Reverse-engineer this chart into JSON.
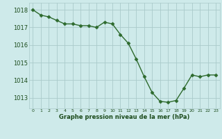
{
  "x": [
    0,
    1,
    2,
    3,
    4,
    5,
    6,
    7,
    8,
    9,
    10,
    11,
    12,
    13,
    14,
    15,
    16,
    17,
    18,
    19,
    20,
    21,
    22,
    23
  ],
  "y": [
    1018.0,
    1017.7,
    1017.6,
    1017.4,
    1017.2,
    1017.2,
    1017.1,
    1017.1,
    1017.0,
    1017.3,
    1017.2,
    1016.6,
    1016.1,
    1015.2,
    1014.2,
    1013.3,
    1012.8,
    1012.75,
    1012.85,
    1013.55,
    1014.3,
    1014.2,
    1014.3,
    1014.3
  ],
  "line_color": "#2d6a2d",
  "marker": "D",
  "marker_size": 2.5,
  "bg_color": "#ceeaea",
  "grid_color": "#aacaca",
  "label_color": "#1a4a1a",
  "xlabel": "Graphe pression niveau de la mer (hPa)",
  "yticks": [
    1013,
    1014,
    1015,
    1016,
    1017,
    1018
  ],
  "xticks": [
    0,
    1,
    2,
    3,
    4,
    5,
    6,
    7,
    8,
    9,
    10,
    11,
    12,
    13,
    14,
    15,
    16,
    17,
    18,
    19,
    20,
    21,
    22,
    23
  ],
  "ylim": [
    1012.4,
    1018.4
  ],
  "xlim": [
    -0.5,
    23.5
  ]
}
